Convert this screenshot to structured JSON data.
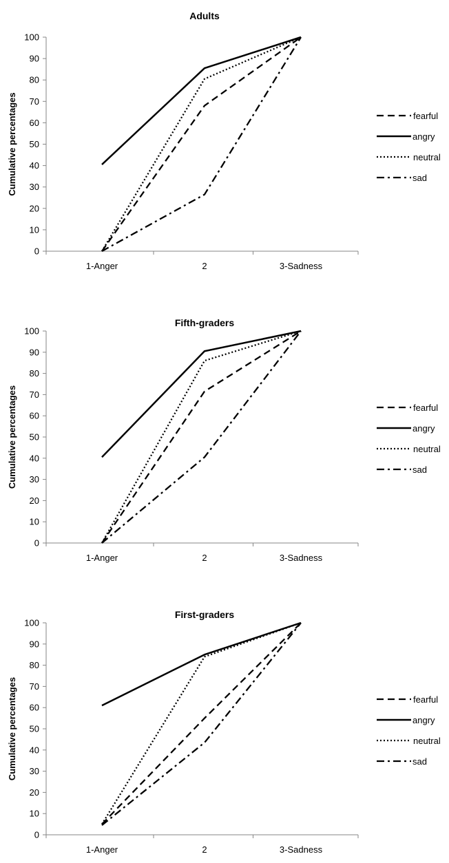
{
  "chart_data": [
    {
      "type": "line",
      "title": "Adults",
      "ylabel": "Cumulative percentages",
      "xlabel": "",
      "categories": [
        "1-Anger",
        "2",
        "3-Sadness"
      ],
      "ylim": [
        0,
        100
      ],
      "yticks": [
        0,
        10,
        20,
        30,
        40,
        50,
        60,
        70,
        80,
        90,
        100
      ],
      "legend_position": "right",
      "series": [
        {
          "name": "fearful",
          "values": [
            0,
            68,
            100
          ],
          "dash": "dashed"
        },
        {
          "name": "angry",
          "values": [
            40.5,
            85.5,
            100
          ],
          "dash": "solid"
        },
        {
          "name": "neutral",
          "values": [
            0,
            80.5,
            100
          ],
          "dash": "dotted"
        },
        {
          "name": "sad",
          "values": [
            0,
            26.5,
            100
          ],
          "dash": "dashdot"
        }
      ]
    },
    {
      "type": "line",
      "title": "Fifth-graders",
      "ylabel": "Cumulative percentages",
      "xlabel": "",
      "categories": [
        "1-Anger",
        "2",
        "3-Sadness"
      ],
      "ylim": [
        0,
        100
      ],
      "yticks": [
        0,
        10,
        20,
        30,
        40,
        50,
        60,
        70,
        80,
        90,
        100
      ],
      "legend_position": "right",
      "series": [
        {
          "name": "fearful",
          "values": [
            0,
            71.5,
            100
          ],
          "dash": "dashed"
        },
        {
          "name": "angry",
          "values": [
            40.5,
            90.5,
            100
          ],
          "dash": "solid"
        },
        {
          "name": "neutral",
          "values": [
            0,
            86,
            100
          ],
          "dash": "dotted"
        },
        {
          "name": "sad",
          "values": [
            0,
            40.5,
            100
          ],
          "dash": "dashdot"
        }
      ]
    },
    {
      "type": "line",
      "title": "First-graders",
      "ylabel": "Cumulative percentages",
      "xlabel": "",
      "categories": [
        "1-Anger",
        "2",
        "3-Sadness"
      ],
      "ylim": [
        0,
        100
      ],
      "yticks": [
        0,
        10,
        20,
        30,
        40,
        50,
        60,
        70,
        80,
        90,
        100
      ],
      "legend_position": "right",
      "series": [
        {
          "name": "fearful",
          "values": [
            5,
            55,
            100
          ],
          "dash": "dashed"
        },
        {
          "name": "angry",
          "values": [
            61,
            85,
            100
          ],
          "dash": "solid"
        },
        {
          "name": "neutral",
          "values": [
            5,
            84,
            100
          ],
          "dash": "dotted"
        },
        {
          "name": "sad",
          "values": [
            4.5,
            43.5,
            100
          ],
          "dash": "dashdot"
        }
      ]
    }
  ]
}
